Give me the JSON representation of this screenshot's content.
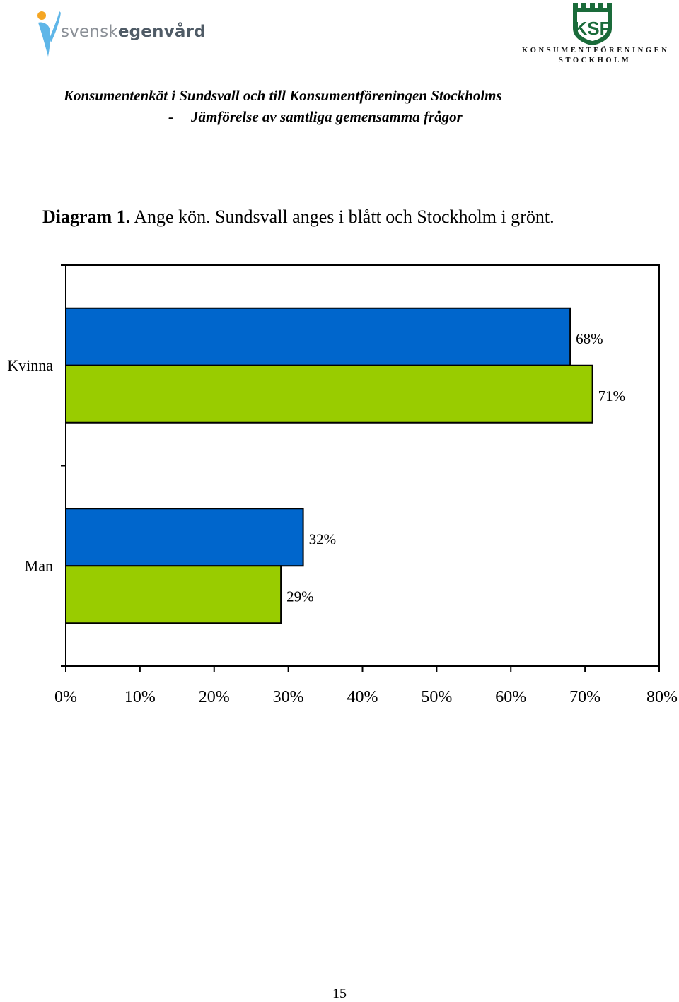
{
  "header": {
    "brand_left_part1": "svensk",
    "brand_left_part2": "egenvård",
    "ksf_monogram": "KSF",
    "ksf_line1": "KONSUMENTFÖRENINGEN",
    "ksf_line2": "STOCKHOLM"
  },
  "title": {
    "line1": "Konsumentenkät i Sundsvall och till Konsumentföreningen Stockholms",
    "line2_dash": "-",
    "line2": "Jämförelse av samtliga gemensamma frågor"
  },
  "caption": {
    "label": "Diagram 1.",
    "text": "Ange kön. Sundsvall anges i blått och Stockholm i grönt."
  },
  "colors": {
    "sundsvall": "#0066CC",
    "stockholm": "#99CC00",
    "ksf_green": "#1a6b3a",
    "figure_blue": "#5fb6e8",
    "figure_orange": "#f5a623"
  },
  "icons": {
    "left_logo": "svensk-egenvard-figure-icon",
    "right_logo": "ksf-castle-emblem-icon"
  },
  "chart_data": {
    "type": "bar",
    "orientation": "horizontal",
    "categories": [
      "Kvinna",
      "Man"
    ],
    "series": [
      {
        "values": [
          68,
          32
        ],
        "labels": [
          "68%",
          "32%"
        ]
      },
      {
        "values": [
          71,
          29
        ],
        "labels": [
          "71%",
          "29%"
        ]
      }
    ],
    "xlim": [
      0,
      80
    ],
    "xticks": [
      "0%",
      "10%",
      "20%",
      "30%",
      "40%",
      "50%",
      "60%",
      "70%",
      "80%"
    ],
    "grid": false,
    "legend": "none"
  },
  "footer": {
    "page_number": "15"
  }
}
